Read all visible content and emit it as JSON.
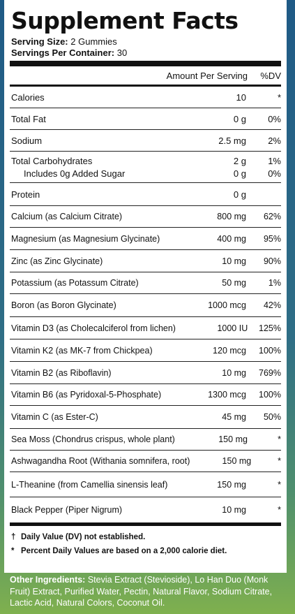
{
  "panel": {
    "title": "Supplement Facts",
    "serving_size_label": "Serving Size:",
    "serving_size_value": "2 Gummies",
    "servings_label": "Servings Per Container:",
    "servings_value": "30",
    "col_amount": "Amount Per Serving",
    "col_dv": "%DV"
  },
  "rows": [
    {
      "name": "Calories",
      "amount": "10",
      "dv": "*"
    },
    {
      "name": "Total Fat",
      "amount": "0 g",
      "dv": "0%"
    },
    {
      "name": "Sodium",
      "amount": "2.5 mg",
      "dv": "2%"
    },
    {
      "name": "Total Carbohydrates",
      "amount": "2 g",
      "dv": "1%"
    },
    {
      "name": "Includes 0g Added Sugar",
      "amount": "0 g",
      "dv": "0%"
    },
    {
      "name": "Protein",
      "amount": "0 g",
      "dv": ""
    },
    {
      "name": "Calcium (as Calcium Citrate)",
      "amount": "800 mg",
      "dv": "62%"
    },
    {
      "name": "Magnesium (as Magnesium Glycinate)",
      "amount": "400 mg",
      "dv": "95%"
    },
    {
      "name": "Zinc (as Zinc Glycinate)",
      "amount": "10 mg",
      "dv": "90%"
    },
    {
      "name": "Potassium (as Potassum Citrate)",
      "amount": "50 mg",
      "dv": "1%"
    },
    {
      "name": "Boron (as Boron Glycinate)",
      "amount": "1000 mcg",
      "dv": "42%"
    },
    {
      "name": "Vitamin D3 (as Cholecalciferol from lichen)",
      "amount": "1000 IU",
      "dv": "125%"
    },
    {
      "name": "Vitamin K2 (as MK-7 from Chickpea)",
      "amount": "120 mcg",
      "dv": "100%"
    },
    {
      "name": "Vitamin B2 (as Riboflavin)",
      "amount": "10 mg",
      "dv": "769%"
    },
    {
      "name": "Vitamin B6 (as Pyridoxal-5-Phosphate)",
      "amount": "1300 mcg",
      "dv": "100%"
    },
    {
      "name": "Vitamin C (as Ester-C)",
      "amount": "45 mg",
      "dv": "50%"
    },
    {
      "name": "Sea Moss (Chondrus crispus, whole plant)",
      "amount": "150 mg",
      "dv": "*"
    },
    {
      "name": "Ashwagandha Root (Withania somnifera, root)",
      "amount": "150 mg",
      "dv": "*"
    },
    {
      "name": "L-Theanine (from Camellia sinensis leaf)",
      "amount": "150 mg",
      "dv": "*"
    },
    {
      "name": "Black Pepper (Piper Nigrum)",
      "amount": "10 mg",
      "dv": "*"
    }
  ],
  "notes": {
    "dagger_symbol": "†",
    "dagger_text": "Daily Value (DV) not established.",
    "star_symbol": "*",
    "star_text": "Percent Daily Values are based on a 2,000 calorie diet."
  },
  "other": {
    "label": "Other Ingredients:",
    "text": "Stevia Extract (Stevioside), Lo Han Duo (Monk Fruit) Extract, Purified Water, Pectin, Natural Flavor, Sodium Citrate, Lactic Acid, Natural Colors, Coconut Oil."
  },
  "colors": {
    "background_top": "#1f5a86",
    "background_bottom": "#7fb04e",
    "panel": "#ffffff",
    "text": "#111111"
  }
}
